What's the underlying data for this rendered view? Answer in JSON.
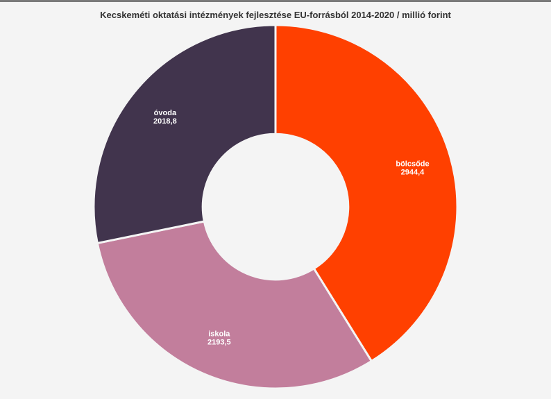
{
  "chart_data": {
    "type": "pie",
    "title": "Kecskeméti oktatási intézmények fejlesztése EU-forrásból 2014-2020 / millió forint",
    "inner_radius_ratio": 0.4,
    "start_angle_deg": 0,
    "slices": [
      {
        "label": "bölcsőde",
        "value": 2944.4,
        "value_label": "2944,4",
        "color": "#ff4000"
      },
      {
        "label": "iskola",
        "value": 2193.5,
        "value_label": "2193,5",
        "color": "#c27e9c"
      },
      {
        "label": "óvoda",
        "value": 2018.8,
        "value_label": "2018,8",
        "color": "#41344d"
      }
    ]
  }
}
